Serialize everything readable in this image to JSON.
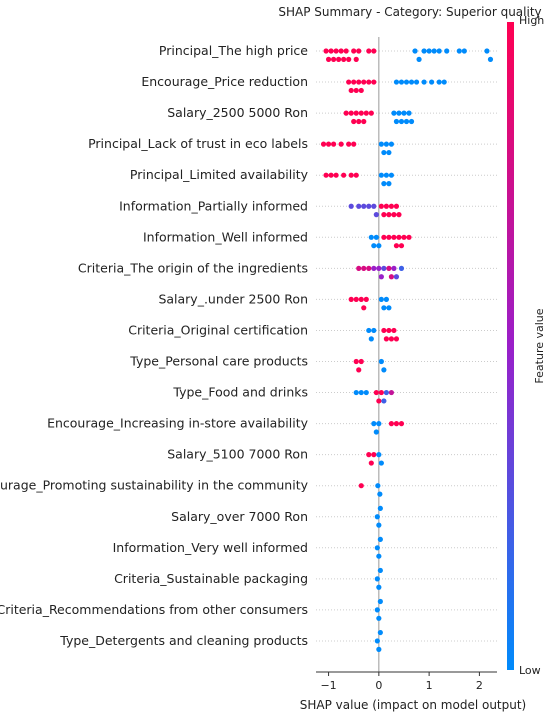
{
  "chart_data": {
    "type": "scatter",
    "subtype": "shap-beeswarm",
    "title": "SHAP Summary - Category: Superior quality",
    "xlabel": "SHAP value (impact on model output)",
    "xlim": [
      -1.25,
      2.35
    ],
    "xticks": [
      -1,
      0,
      1,
      2
    ],
    "colorbar": {
      "label": "Feature value",
      "high_label": "High",
      "low_label": "Low",
      "high_color": "#ff0052",
      "low_color": "#008bfb"
    },
    "grid": false,
    "features": [
      {
        "name": "Principal_The high price",
        "points": [
          {
            "x": -1.05,
            "v": 1
          },
          {
            "x": -1.0,
            "v": 1
          },
          {
            "x": -0.95,
            "v": 1
          },
          {
            "x": -0.9,
            "v": 1
          },
          {
            "x": -0.85,
            "v": 1
          },
          {
            "x": -0.8,
            "v": 1
          },
          {
            "x": -0.75,
            "v": 1
          },
          {
            "x": -0.7,
            "v": 1
          },
          {
            "x": -0.65,
            "v": 1
          },
          {
            "x": -0.6,
            "v": 1
          },
          {
            "x": -0.5,
            "v": 1
          },
          {
            "x": -0.45,
            "v": 1
          },
          {
            "x": -0.4,
            "v": 1
          },
          {
            "x": -0.2,
            "v": 1
          },
          {
            "x": -0.1,
            "v": 1
          },
          {
            "x": 0.72,
            "v": 0
          },
          {
            "x": 0.8,
            "v": 0
          },
          {
            "x": 0.9,
            "v": 0
          },
          {
            "x": 1.0,
            "v": 0
          },
          {
            "x": 1.1,
            "v": 0
          },
          {
            "x": 1.2,
            "v": 0
          },
          {
            "x": 1.35,
            "v": 0
          },
          {
            "x": 1.6,
            "v": 0
          },
          {
            "x": 1.7,
            "v": 0
          },
          {
            "x": 2.15,
            "v": 0
          },
          {
            "x": 2.22,
            "v": 0
          }
        ]
      },
      {
        "name": "Encourage_Price reduction",
        "points": [
          {
            "x": -0.6,
            "v": 1
          },
          {
            "x": -0.55,
            "v": 1
          },
          {
            "x": -0.5,
            "v": 1
          },
          {
            "x": -0.45,
            "v": 1
          },
          {
            "x": -0.4,
            "v": 1
          },
          {
            "x": -0.35,
            "v": 1
          },
          {
            "x": -0.3,
            "v": 1
          },
          {
            "x": -0.2,
            "v": 1
          },
          {
            "x": -0.1,
            "v": 1
          },
          {
            "x": 0.35,
            "v": 0
          },
          {
            "x": 0.45,
            "v": 0
          },
          {
            "x": 0.55,
            "v": 0
          },
          {
            "x": 0.65,
            "v": 0
          },
          {
            "x": 0.75,
            "v": 0
          },
          {
            "x": 0.9,
            "v": 0
          },
          {
            "x": 1.05,
            "v": 0
          },
          {
            "x": 1.2,
            "v": 0
          },
          {
            "x": 1.3,
            "v": 0
          }
        ]
      },
      {
        "name": "Salary_2500  5000 Ron",
        "points": [
          {
            "x": -0.65,
            "v": 1
          },
          {
            "x": -0.55,
            "v": 1
          },
          {
            "x": -0.5,
            "v": 1
          },
          {
            "x": -0.45,
            "v": 1
          },
          {
            "x": -0.4,
            "v": 1
          },
          {
            "x": -0.35,
            "v": 1
          },
          {
            "x": -0.3,
            "v": 1
          },
          {
            "x": -0.25,
            "v": 1
          },
          {
            "x": -0.15,
            "v": 1
          },
          {
            "x": 0.3,
            "v": 0
          },
          {
            "x": 0.35,
            "v": 0
          },
          {
            "x": 0.4,
            "v": 0
          },
          {
            "x": 0.45,
            "v": 0
          },
          {
            "x": 0.5,
            "v": 0
          },
          {
            "x": 0.55,
            "v": 0
          },
          {
            "x": 0.6,
            "v": 0
          },
          {
            "x": 0.65,
            "v": 0
          }
        ]
      },
      {
        "name": "Principal_Lack of trust in eco labels",
        "points": [
          {
            "x": -1.1,
            "v": 1
          },
          {
            "x": -1.0,
            "v": 1
          },
          {
            "x": -0.9,
            "v": 1
          },
          {
            "x": -0.75,
            "v": 1
          },
          {
            "x": -0.6,
            "v": 1
          },
          {
            "x": -0.5,
            "v": 1
          },
          {
            "x": 0.05,
            "v": 0
          },
          {
            "x": 0.1,
            "v": 0
          },
          {
            "x": 0.15,
            "v": 0
          },
          {
            "x": 0.2,
            "v": 0
          },
          {
            "x": 0.25,
            "v": 0
          }
        ]
      },
      {
        "name": "Principal_Limited availability",
        "points": [
          {
            "x": -1.05,
            "v": 1
          },
          {
            "x": -0.95,
            "v": 1
          },
          {
            "x": -0.85,
            "v": 1
          },
          {
            "x": -0.7,
            "v": 1
          },
          {
            "x": -0.55,
            "v": 1
          },
          {
            "x": -0.45,
            "v": 1
          },
          {
            "x": 0.05,
            "v": 0
          },
          {
            "x": 0.1,
            "v": 0
          },
          {
            "x": 0.15,
            "v": 0
          },
          {
            "x": 0.2,
            "v": 0
          },
          {
            "x": 0.25,
            "v": 0
          }
        ]
      },
      {
        "name": "Information_Partially informed",
        "points": [
          {
            "x": -0.55,
            "v": 0.3
          },
          {
            "x": -0.4,
            "v": 0.3
          },
          {
            "x": -0.3,
            "v": 0.3
          },
          {
            "x": -0.2,
            "v": 0.3
          },
          {
            "x": -0.1,
            "v": 0.3
          },
          {
            "x": -0.05,
            "v": 0.3
          },
          {
            "x": 0.05,
            "v": 1
          },
          {
            "x": 0.1,
            "v": 1
          },
          {
            "x": 0.15,
            "v": 1
          },
          {
            "x": 0.2,
            "v": 1
          },
          {
            "x": 0.25,
            "v": 1
          },
          {
            "x": 0.3,
            "v": 1
          },
          {
            "x": 0.35,
            "v": 1
          },
          {
            "x": 0.4,
            "v": 1
          }
        ]
      },
      {
        "name": "Information_Well informed",
        "points": [
          {
            "x": -0.15,
            "v": 0
          },
          {
            "x": -0.1,
            "v": 0
          },
          {
            "x": -0.05,
            "v": 0
          },
          {
            "x": 0.0,
            "v": 0
          },
          {
            "x": 0.1,
            "v": 1
          },
          {
            "x": 0.2,
            "v": 1
          },
          {
            "x": 0.3,
            "v": 1
          },
          {
            "x": 0.35,
            "v": 1
          },
          {
            "x": 0.4,
            "v": 1
          },
          {
            "x": 0.45,
            "v": 1
          },
          {
            "x": 0.5,
            "v": 1
          },
          {
            "x": 0.6,
            "v": 1
          }
        ]
      },
      {
        "name": "Criteria_The origin of the ingredients",
        "points": [
          {
            "x": -0.4,
            "v": 0.8
          },
          {
            "x": -0.3,
            "v": 0.8
          },
          {
            "x": -0.2,
            "v": 0.8
          },
          {
            "x": -0.1,
            "v": 0.5
          },
          {
            "x": 0.0,
            "v": 0.5
          },
          {
            "x": 0.05,
            "v": 0.5
          },
          {
            "x": 0.1,
            "v": 0.3
          },
          {
            "x": 0.2,
            "v": 0.8
          },
          {
            "x": 0.25,
            "v": 0.8
          },
          {
            "x": 0.3,
            "v": 0.5
          },
          {
            "x": 0.35,
            "v": 0.3
          },
          {
            "x": 0.45,
            "v": 0.2
          }
        ]
      },
      {
        "name": "Salary_.under  2500 Ron",
        "points": [
          {
            "x": -0.55,
            "v": 1
          },
          {
            "x": -0.45,
            "v": 1
          },
          {
            "x": -0.35,
            "v": 1
          },
          {
            "x": -0.3,
            "v": 1
          },
          {
            "x": -0.25,
            "v": 1
          },
          {
            "x": 0.05,
            "v": 0
          },
          {
            "x": 0.1,
            "v": 0
          },
          {
            "x": 0.15,
            "v": 0
          },
          {
            "x": 0.2,
            "v": 0
          }
        ]
      },
      {
        "name": "Criteria_Original certification",
        "points": [
          {
            "x": -0.2,
            "v": 0
          },
          {
            "x": -0.15,
            "v": 0
          },
          {
            "x": -0.1,
            "v": 0
          },
          {
            "x": 0.1,
            "v": 1
          },
          {
            "x": 0.15,
            "v": 1
          },
          {
            "x": 0.2,
            "v": 1
          },
          {
            "x": 0.25,
            "v": 1
          },
          {
            "x": 0.3,
            "v": 1
          },
          {
            "x": 0.35,
            "v": 1
          }
        ]
      },
      {
        "name": "Type_Personal care products",
        "points": [
          {
            "x": -0.45,
            "v": 1
          },
          {
            "x": -0.4,
            "v": 1
          },
          {
            "x": -0.35,
            "v": 1
          },
          {
            "x": 0.05,
            "v": 0
          },
          {
            "x": 0.1,
            "v": 0
          }
        ]
      },
      {
        "name": "Type_Food and drinks",
        "points": [
          {
            "x": -0.45,
            "v": 0
          },
          {
            "x": -0.35,
            "v": 0
          },
          {
            "x": -0.25,
            "v": 0
          },
          {
            "x": -0.05,
            "v": 1
          },
          {
            "x": 0.0,
            "v": 1
          },
          {
            "x": 0.05,
            "v": 1
          },
          {
            "x": 0.1,
            "v": 0.2
          },
          {
            "x": 0.15,
            "v": 0.2
          },
          {
            "x": 0.25,
            "v": 0.7
          }
        ]
      },
      {
        "name": "Encourage_Increasing in-store availability",
        "points": [
          {
            "x": -0.1,
            "v": 0
          },
          {
            "x": -0.05,
            "v": 0
          },
          {
            "x": 0.0,
            "v": 0
          },
          {
            "x": 0.25,
            "v": 1
          },
          {
            "x": 0.35,
            "v": 1
          },
          {
            "x": 0.45,
            "v": 1
          }
        ]
      },
      {
        "name": "Salary_5100  7000 Ron",
        "points": [
          {
            "x": -0.2,
            "v": 1
          },
          {
            "x": -0.15,
            "v": 1
          },
          {
            "x": -0.1,
            "v": 1
          },
          {
            "x": 0.0,
            "v": 0
          },
          {
            "x": 0.05,
            "v": 0
          }
        ]
      },
      {
        "name": "Encourage_Promoting sustainability in the community",
        "points": [
          {
            "x": -0.35,
            "v": 1
          },
          {
            "x": -0.02,
            "v": 0
          },
          {
            "x": 0.02,
            "v": 0
          }
        ]
      },
      {
        "name": "Salary_over  7000 Ron",
        "points": [
          {
            "x": -0.03,
            "v": 0
          },
          {
            "x": 0.0,
            "v": 0
          },
          {
            "x": 0.03,
            "v": 0
          }
        ]
      },
      {
        "name": "Information_Very well informed",
        "points": [
          {
            "x": -0.03,
            "v": 0
          },
          {
            "x": 0.0,
            "v": 0
          },
          {
            "x": 0.03,
            "v": 0
          }
        ]
      },
      {
        "name": "Criteria_Sustainable packaging",
        "points": [
          {
            "x": -0.03,
            "v": 0
          },
          {
            "x": 0.0,
            "v": 0
          },
          {
            "x": 0.03,
            "v": 0
          }
        ]
      },
      {
        "name": "Criteria_Recommendations from other consumers",
        "points": [
          {
            "x": -0.03,
            "v": 0
          },
          {
            "x": 0.0,
            "v": 0
          },
          {
            "x": 0.03,
            "v": 0
          }
        ]
      },
      {
        "name": "Type_Detergents and cleaning products",
        "points": [
          {
            "x": -0.03,
            "v": 0
          },
          {
            "x": 0.0,
            "v": 0
          },
          {
            "x": 0.03,
            "v": 0
          }
        ]
      }
    ]
  }
}
